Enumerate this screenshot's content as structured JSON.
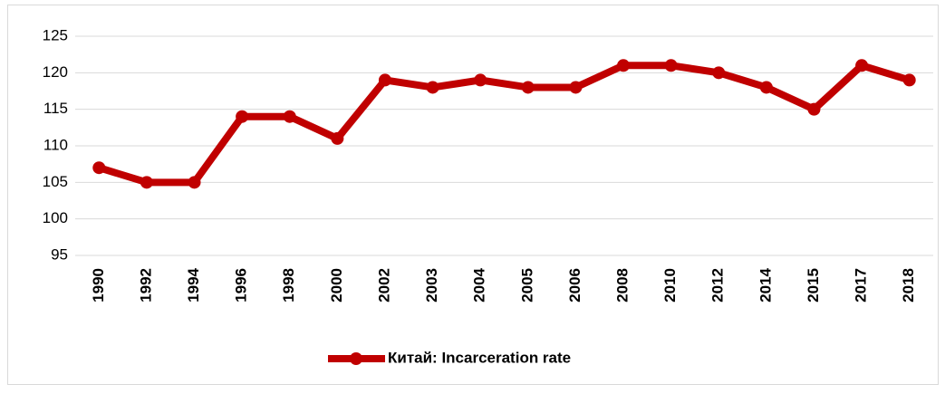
{
  "chart_data": {
    "type": "line",
    "categories": [
      "1990",
      "1992",
      "1994",
      "1996",
      "1998",
      "2000",
      "2002",
      "2003",
      "2004",
      "2005",
      "2006",
      "2008",
      "2010",
      "2012",
      "2014",
      "2015",
      "2017",
      "2018"
    ],
    "series": [
      {
        "name": "Китай: Incarceration rate",
        "color": "#c00000",
        "values": [
          107,
          105,
          105,
          114,
          114,
          111,
          119,
          118,
          119,
          118,
          118,
          121,
          121,
          120,
          118,
          115,
          121,
          119
        ]
      }
    ],
    "ylim": [
      95,
      125
    ],
    "yticks": [
      95,
      100,
      105,
      110,
      115,
      120,
      125
    ],
    "grid": true,
    "legend": "bottom"
  }
}
